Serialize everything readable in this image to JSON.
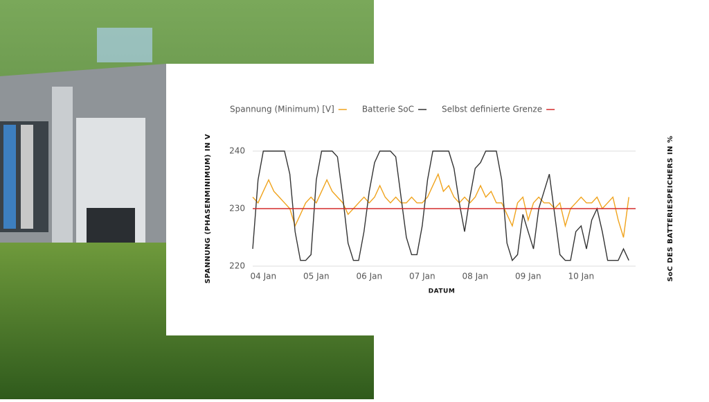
{
  "chart_data": {
    "type": "line",
    "xlabel": "DATUM",
    "ylabel": "SPANNUNG (PHASENMINIMUM) IN V",
    "y2label": "SoC DES BATTERIESPEICHERS IN %",
    "x": [
      3.8,
      3.9,
      4.0,
      4.1,
      4.2,
      4.3,
      4.4,
      4.5,
      4.6,
      4.7,
      4.8,
      4.9,
      5.0,
      5.1,
      5.2,
      5.3,
      5.4,
      5.5,
      5.6,
      5.7,
      5.8,
      5.9,
      6.0,
      6.1,
      6.2,
      6.3,
      6.4,
      6.5,
      6.6,
      6.7,
      6.8,
      6.9,
      7.0,
      7.1,
      7.2,
      7.3,
      7.4,
      7.5,
      7.6,
      7.7,
      7.8,
      7.9,
      8.0,
      8.1,
      8.2,
      8.3,
      8.4,
      8.5,
      8.6,
      8.7,
      8.8,
      8.9,
      9.0,
      9.1,
      9.2,
      9.3,
      9.4,
      9.5,
      9.6,
      9.7,
      9.8,
      9.9,
      10.0,
      10.1,
      10.2,
      10.3,
      10.4,
      10.5,
      10.6,
      10.7,
      10.8,
      10.9
    ],
    "xlim": [
      3.8,
      10.95
    ],
    "xticks": [
      {
        "value": 4,
        "label": "04 Jan"
      },
      {
        "value": 5,
        "label": "05 Jan"
      },
      {
        "value": 6,
        "label": "06 Jan"
      },
      {
        "value": 7,
        "label": "07 Jan"
      },
      {
        "value": 8,
        "label": "08 Jan"
      },
      {
        "value": 9,
        "label": "09 Jan"
      },
      {
        "value": 10,
        "label": "10 Jan"
      }
    ],
    "ylim": [
      220,
      240
    ],
    "yticks": [
      220,
      230,
      240
    ],
    "y2lim": [
      0,
      100
    ],
    "grid": true,
    "series": [
      {
        "name": "Spannung (Minimum) [V]",
        "color": "#f0a31c",
        "values": [
          232,
          231,
          233,
          235,
          233,
          232,
          231,
          230,
          227,
          229,
          231,
          232,
          231,
          233,
          235,
          233,
          232,
          231,
          229,
          230,
          231,
          232,
          231,
          232,
          234,
          232,
          231,
          232,
          231,
          231,
          232,
          231,
          231,
          232,
          234,
          236,
          233,
          234,
          232,
          231,
          232,
          231,
          232,
          234,
          232,
          233,
          231,
          231,
          229,
          227,
          231,
          232,
          228,
          231,
          232,
          231,
          231,
          230,
          231,
          227,
          230,
          231,
          232,
          231,
          231,
          232,
          230,
          231,
          232,
          228,
          225,
          232
        ]
      },
      {
        "name": "Batterie SoC",
        "color": "#333333",
        "axis": "y2",
        "values": [
          15,
          75,
          100,
          100,
          100,
          100,
          100,
          80,
          30,
          5,
          5,
          10,
          75,
          100,
          100,
          100,
          95,
          60,
          20,
          5,
          5,
          30,
          65,
          90,
          100,
          100,
          100,
          95,
          60,
          25,
          10,
          10,
          35,
          75,
          100,
          100,
          100,
          100,
          85,
          55,
          30,
          60,
          85,
          90,
          100,
          100,
          100,
          75,
          20,
          5,
          10,
          45,
          30,
          15,
          50,
          65,
          80,
          45,
          10,
          5,
          5,
          30,
          35,
          15,
          40,
          50,
          30,
          5,
          5,
          5,
          15,
          5
        ]
      }
    ],
    "reference_lines": [
      {
        "name": "Selbst definierte Grenze",
        "color": "#d42a2a",
        "value": 230
      }
    ]
  }
}
